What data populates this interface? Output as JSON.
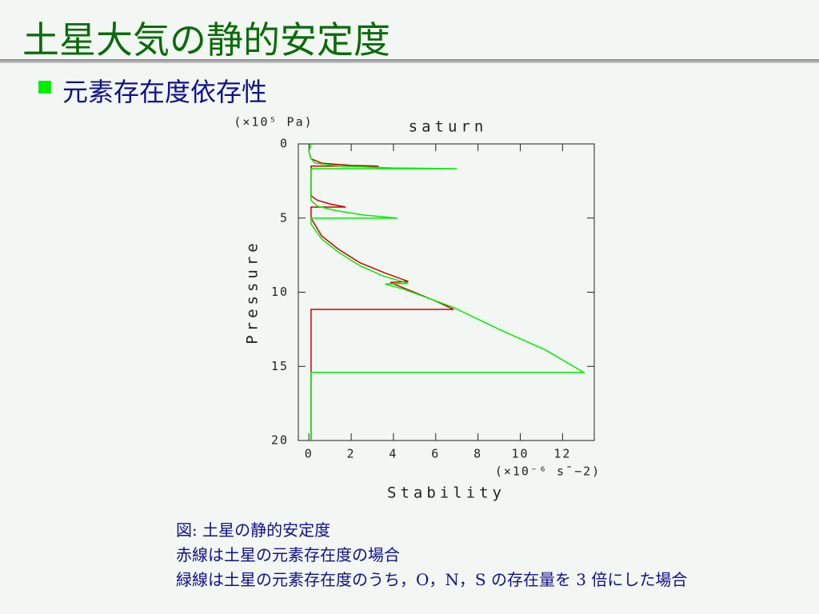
{
  "slide": {
    "title": "土星大気の静的安定度",
    "bullet": "元素存在度依存性",
    "caption": [
      "図: 土星の静的安定度",
      "赤線は土星の元素存在度の場合",
      "緑線は土星の元素存在度のうち，O，N，S の存在量を 3 倍にした場合"
    ]
  },
  "chart_data": {
    "type": "line",
    "title": "saturn",
    "xlabel": "Stability",
    "ylabel": "Pressure",
    "x_unit": "(×10⁻⁶ s¯−2)",
    "y_unit": "(×10⁵ Pa)",
    "xlim": [
      -0.5,
      13.5
    ],
    "xticks": [
      0,
      2,
      4,
      6,
      8,
      10,
      12
    ],
    "ylim": [
      0,
      20
    ],
    "yticks": [
      0,
      5,
      10,
      15,
      20
    ],
    "y_inverted": true,
    "grid": false,
    "series": [
      {
        "color": "#cc0000",
        "x": [
          0.1,
          0.0,
          0.1,
          0.6,
          2.0,
          3.3,
          0.1,
          0.1,
          0.1,
          0.4,
          1.0,
          1.74,
          0.1,
          0.1,
          0.6,
          1.4,
          2.4,
          3.6,
          4.7,
          3.85,
          4.8,
          6.0,
          6.85,
          0.1,
          0.1
        ],
        "values": [
          0.0,
          0.5,
          1.0,
          1.3,
          1.45,
          1.5,
          1.5,
          3.0,
          3.5,
          3.8,
          4.05,
          4.26,
          4.26,
          5.0,
          6.2,
          7.1,
          8.0,
          8.7,
          9.27,
          9.35,
          9.9,
          10.6,
          11.16,
          11.16,
          20.0
        ]
      },
      {
        "color": "#00ee00",
        "x": [
          0.1,
          0.0,
          0.1,
          0.3,
          1.5,
          4.0,
          7.0,
          0.1,
          0.1,
          0.1,
          0.4,
          1.3,
          2.6,
          4.2,
          0.1,
          0.1,
          0.6,
          1.4,
          2.4,
          3.5,
          4.7,
          3.6,
          4.5,
          6.8,
          9.0,
          11.2,
          13.0,
          0.1,
          0.1
        ],
        "values": [
          0.0,
          0.5,
          1.0,
          1.3,
          1.5,
          1.62,
          1.67,
          1.67,
          3.0,
          3.8,
          4.2,
          4.5,
          4.8,
          5.01,
          5.01,
          5.4,
          6.4,
          7.3,
          8.2,
          8.9,
          9.4,
          9.45,
          9.8,
          11.0,
          12.5,
          13.9,
          15.4,
          15.4,
          20.0
        ]
      }
    ]
  }
}
